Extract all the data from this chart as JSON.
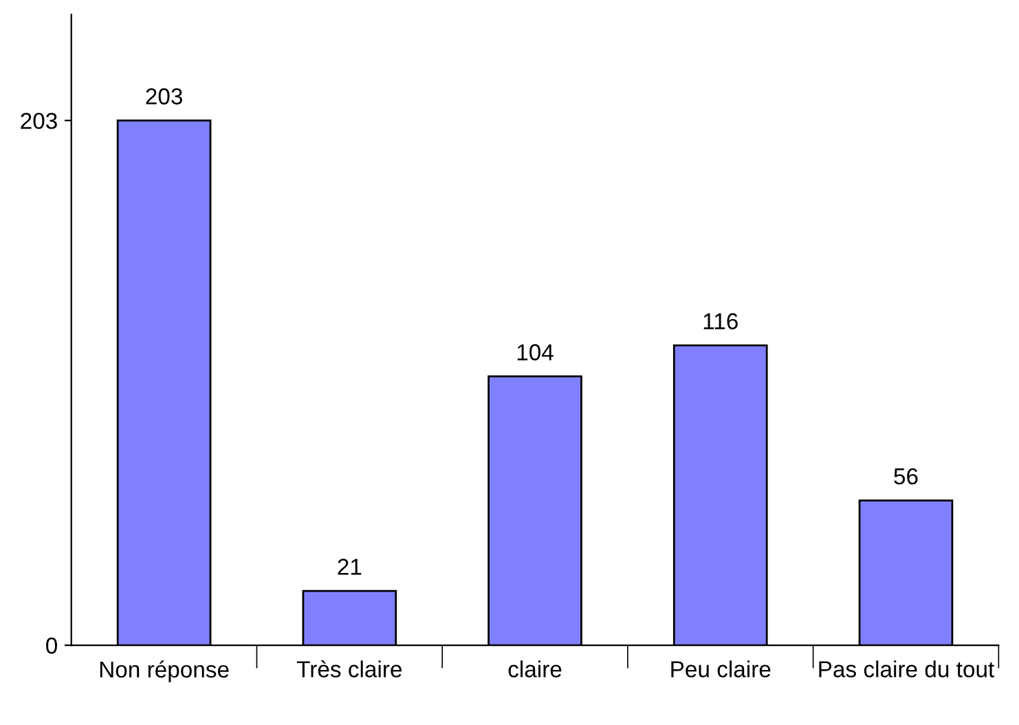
{
  "chart_data": {
    "type": "bar",
    "categories": [
      "Non réponse",
      "Très claire",
      "claire",
      "Peu claire",
      "Pas claire du tout"
    ],
    "values": [
      203,
      21,
      104,
      116,
      56
    ],
    "color": "#8080ff",
    "ylim": [
      0,
      244
    ],
    "yticks": [
      0,
      203
    ],
    "data_labels": true,
    "grid": false,
    "legend": false
  }
}
